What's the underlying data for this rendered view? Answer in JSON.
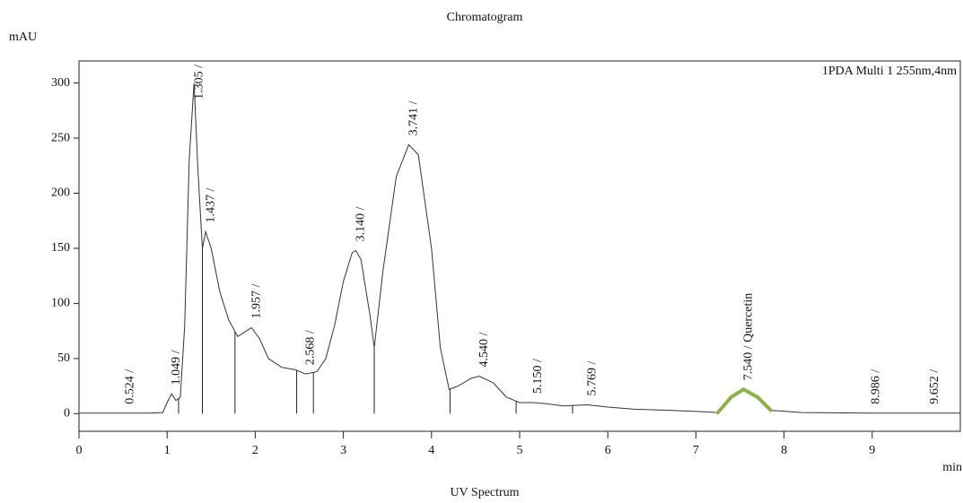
{
  "chart_data": {
    "type": "line",
    "title": "Chromatogram",
    "y_label": "mAU",
    "x_label": "min",
    "annotation": "1PDA Multi 1 255nm,4nm",
    "caption": "UV Spectrum",
    "x": [
      0,
      0.8,
      0.95,
      1.0,
      1.05,
      1.1,
      1.15,
      1.2,
      1.25,
      1.305,
      1.35,
      1.4,
      1.437,
      1.5,
      1.6,
      1.7,
      1.8,
      1.9,
      1.957,
      2.05,
      2.15,
      2.3,
      2.45,
      2.568,
      2.7,
      2.8,
      2.9,
      3.0,
      3.1,
      3.14,
      3.2,
      3.3,
      3.35,
      3.45,
      3.6,
      3.741,
      3.85,
      4.0,
      4.1,
      4.2,
      4.3,
      4.45,
      4.54,
      4.7,
      4.85,
      5.0,
      5.15,
      5.3,
      5.5,
      5.769,
      6.0,
      6.3,
      6.7,
      7.0,
      7.25,
      7.4,
      7.54,
      7.7,
      7.85,
      8.2,
      8.986,
      9.652,
      10
    ],
    "y": [
      0.5,
      0.5,
      1,
      10,
      18,
      12,
      15,
      80,
      230,
      300,
      220,
      150,
      165,
      150,
      110,
      85,
      70,
      75,
      78,
      68,
      50,
      42,
      40,
      36,
      38,
      50,
      80,
      120,
      146,
      148,
      140,
      90,
      60,
      130,
      215,
      244,
      235,
      150,
      60,
      22,
      25,
      32,
      34,
      28,
      15,
      10,
      10,
      9,
      7,
      8,
      6,
      4,
      3,
      2,
      1,
      15,
      22,
      15,
      3,
      1,
      0.5,
      0.5,
      0.5
    ],
    "color": "#333333",
    "highlight_range": [
      7.25,
      7.85
    ],
    "highlight_color": "#8db04a",
    "peak_times": [
      0.524,
      1.049,
      1.305,
      1.437,
      1.957,
      2.568,
      3.14,
      3.741,
      4.54,
      5.15,
      5.769,
      7.54,
      8.986,
      9.652
    ],
    "peak_labels": [
      "0.524 /",
      "1.049 /",
      "1.305 /",
      "1.437 /",
      "1.957 /",
      "2.568 /",
      "3.140 /",
      "3.741 /",
      "4.540 /",
      "5.150 /",
      "5.769 /",
      "7.540 / Quercetin",
      "8.986 /",
      "9.652 /"
    ],
    "integration_boundaries": [
      1.13,
      1.4,
      1.77,
      2.47,
      2.66,
      3.35,
      4.21,
      4.96,
      5.6
    ],
    "xlim": [
      0,
      10
    ],
    "xticks": [
      0,
      1,
      2,
      3,
      4,
      5,
      6,
      7,
      8,
      9
    ],
    "ylim": [
      -16,
      320
    ],
    "yticks": [
      0,
      50,
      100,
      150,
      200,
      250,
      300
    ]
  }
}
